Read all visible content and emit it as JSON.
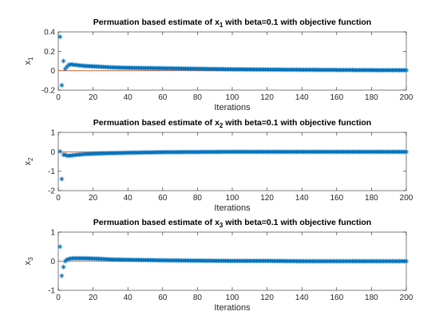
{
  "chart_data": [
    {
      "type": "scatter",
      "title": "Permuation based estimate of x",
      "title_sub": "1",
      "title_tail": " with beta=0.1 with objective function",
      "xlabel": "Iterations",
      "ylabel": "x",
      "ylabel_sub": "1",
      "xlim": [
        0,
        200
      ],
      "ylim": [
        -0.2,
        0.4
      ],
      "xticks": [
        0,
        20,
        40,
        60,
        80,
        100,
        120,
        140,
        160,
        180,
        200
      ],
      "yticks": [
        -0.2,
        0,
        0.2,
        0.4
      ],
      "ytick_labels": [
        "-0.2",
        "0",
        "0.2",
        "0.4"
      ],
      "reference_value": 0,
      "colors": {
        "markers": "#0072bd",
        "reference": "#d95319"
      },
      "series_points": [
        [
          1,
          0.35
        ],
        [
          2,
          -0.15
        ],
        [
          3,
          0.1
        ],
        [
          4,
          0.02
        ],
        [
          5,
          0.04
        ],
        [
          6,
          0.06
        ],
        [
          7,
          0.065
        ],
        [
          8,
          0.065
        ],
        [
          9,
          0.06
        ],
        [
          10,
          0.06
        ],
        [
          12,
          0.055
        ],
        [
          15,
          0.05
        ],
        [
          20,
          0.045
        ],
        [
          30,
          0.035
        ],
        [
          40,
          0.03
        ],
        [
          60,
          0.025
        ],
        [
          80,
          0.02
        ],
        [
          100,
          0.015
        ],
        [
          120,
          0.012
        ],
        [
          140,
          0.01
        ],
        [
          160,
          0.008
        ],
        [
          180,
          0.006
        ],
        [
          200,
          0.005
        ]
      ]
    },
    {
      "type": "scatter",
      "title": "Permuation based estimate of x",
      "title_sub": "2",
      "title_tail": " with beta=0.1 with objective function",
      "xlabel": "Iterations",
      "ylabel": "x",
      "ylabel_sub": "2",
      "xlim": [
        0,
        200
      ],
      "ylim": [
        -2,
        1
      ],
      "xticks": [
        0,
        20,
        40,
        60,
        80,
        100,
        120,
        140,
        160,
        180,
        200
      ],
      "yticks": [
        -2,
        -1,
        0,
        1
      ],
      "ytick_labels": [
        "-2",
        "-1",
        "0",
        "1"
      ],
      "reference_value": 0,
      "colors": {
        "markers": "#0072bd",
        "reference": "#d95319"
      },
      "series_points": [
        [
          1,
          0.02
        ],
        [
          2,
          -1.4
        ],
        [
          3,
          -0.15
        ],
        [
          4,
          -0.15
        ],
        [
          5,
          -0.2
        ],
        [
          6,
          -0.2
        ],
        [
          8,
          -0.18
        ],
        [
          10,
          -0.16
        ],
        [
          15,
          -0.12
        ],
        [
          20,
          -0.1
        ],
        [
          30,
          -0.07
        ],
        [
          40,
          -0.05
        ],
        [
          60,
          -0.02
        ],
        [
          80,
          -0.01
        ],
        [
          100,
          0.0
        ],
        [
          120,
          0.0
        ],
        [
          140,
          0.0
        ],
        [
          160,
          0.0
        ],
        [
          180,
          0.0
        ],
        [
          200,
          0.0
        ]
      ]
    },
    {
      "type": "scatter",
      "title": "Permuation based estimate of x",
      "title_sub": "3",
      "title_tail": " with beta=0.1 with objective function",
      "xlabel": "Iterations",
      "ylabel": "x",
      "ylabel_sub": "3",
      "xlim": [
        0,
        200
      ],
      "ylim": [
        -1,
        1
      ],
      "xticks": [
        0,
        20,
        40,
        60,
        80,
        100,
        120,
        140,
        160,
        180,
        200
      ],
      "yticks": [
        -1,
        0,
        1
      ],
      "ytick_labels": [
        "-1",
        "0",
        "1"
      ],
      "reference_value": 0,
      "colors": {
        "markers": "#0072bd",
        "reference": "#d95319"
      },
      "series_points": [
        [
          1,
          0.5
        ],
        [
          2,
          -0.5
        ],
        [
          3,
          -0.2
        ],
        [
          4,
          0.0
        ],
        [
          5,
          0.05
        ],
        [
          6,
          0.08
        ],
        [
          8,
          0.1
        ],
        [
          10,
          0.1
        ],
        [
          15,
          0.1
        ],
        [
          20,
          0.09
        ],
        [
          25,
          0.08
        ],
        [
          30,
          0.06
        ],
        [
          40,
          0.05
        ],
        [
          60,
          0.03
        ],
        [
          80,
          0.02
        ],
        [
          100,
          0.01
        ],
        [
          120,
          0.01
        ],
        [
          140,
          0.0
        ],
        [
          160,
          0.0
        ],
        [
          180,
          0.0
        ],
        [
          200,
          0.0
        ]
      ]
    }
  ]
}
